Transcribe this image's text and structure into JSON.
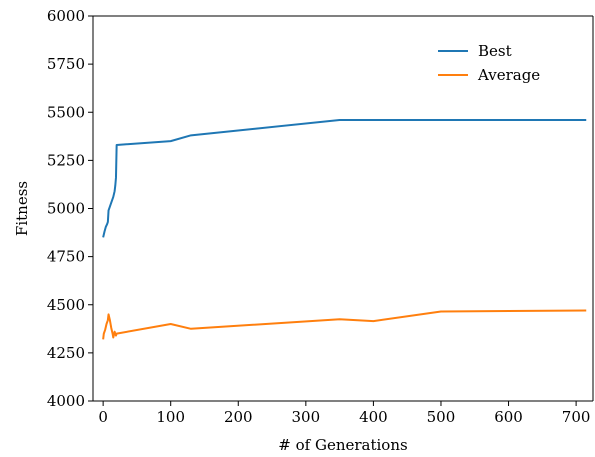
{
  "chart_data": {
    "type": "line",
    "xlabel": "# of Generations",
    "ylabel": "Fitness",
    "xlim": [
      -15,
      725
    ],
    "ylim": [
      4000,
      6000
    ],
    "xticks": [
      0,
      100,
      200,
      300,
      400,
      500,
      600,
      700
    ],
    "yticks": [
      4000,
      4250,
      4500,
      4750,
      5000,
      5250,
      5500,
      5750,
      6000
    ],
    "grid": false,
    "legend_position": "top-right",
    "series": [
      {
        "name": "Best",
        "color": "#1f77b4",
        "points": [
          [
            0,
            4850
          ],
          [
            2,
            4880
          ],
          [
            4,
            4905
          ],
          [
            6,
            4920
          ],
          [
            7,
            4930
          ],
          [
            8,
            4990
          ],
          [
            10,
            5010
          ],
          [
            12,
            5030
          ],
          [
            15,
            5060
          ],
          [
            17,
            5090
          ],
          [
            18,
            5120
          ],
          [
            19,
            5160
          ],
          [
            20,
            5330
          ],
          [
            100,
            5350
          ],
          [
            130,
            5380
          ],
          [
            350,
            5460
          ],
          [
            400,
            5460
          ],
          [
            500,
            5460
          ],
          [
            715,
            5460
          ]
        ]
      },
      {
        "name": "Average",
        "color": "#ff7f0e",
        "points": [
          [
            0,
            4320
          ],
          [
            1,
            4350
          ],
          [
            3,
            4370
          ],
          [
            5,
            4400
          ],
          [
            7,
            4420
          ],
          [
            8,
            4450
          ],
          [
            10,
            4420
          ],
          [
            12,
            4380
          ],
          [
            14,
            4350
          ],
          [
            15,
            4330
          ],
          [
            17,
            4360
          ],
          [
            19,
            4340
          ],
          [
            20,
            4350
          ],
          [
            100,
            4400
          ],
          [
            130,
            4375
          ],
          [
            350,
            4425
          ],
          [
            400,
            4415
          ],
          [
            500,
            4465
          ],
          [
            715,
            4470
          ]
        ]
      }
    ]
  }
}
